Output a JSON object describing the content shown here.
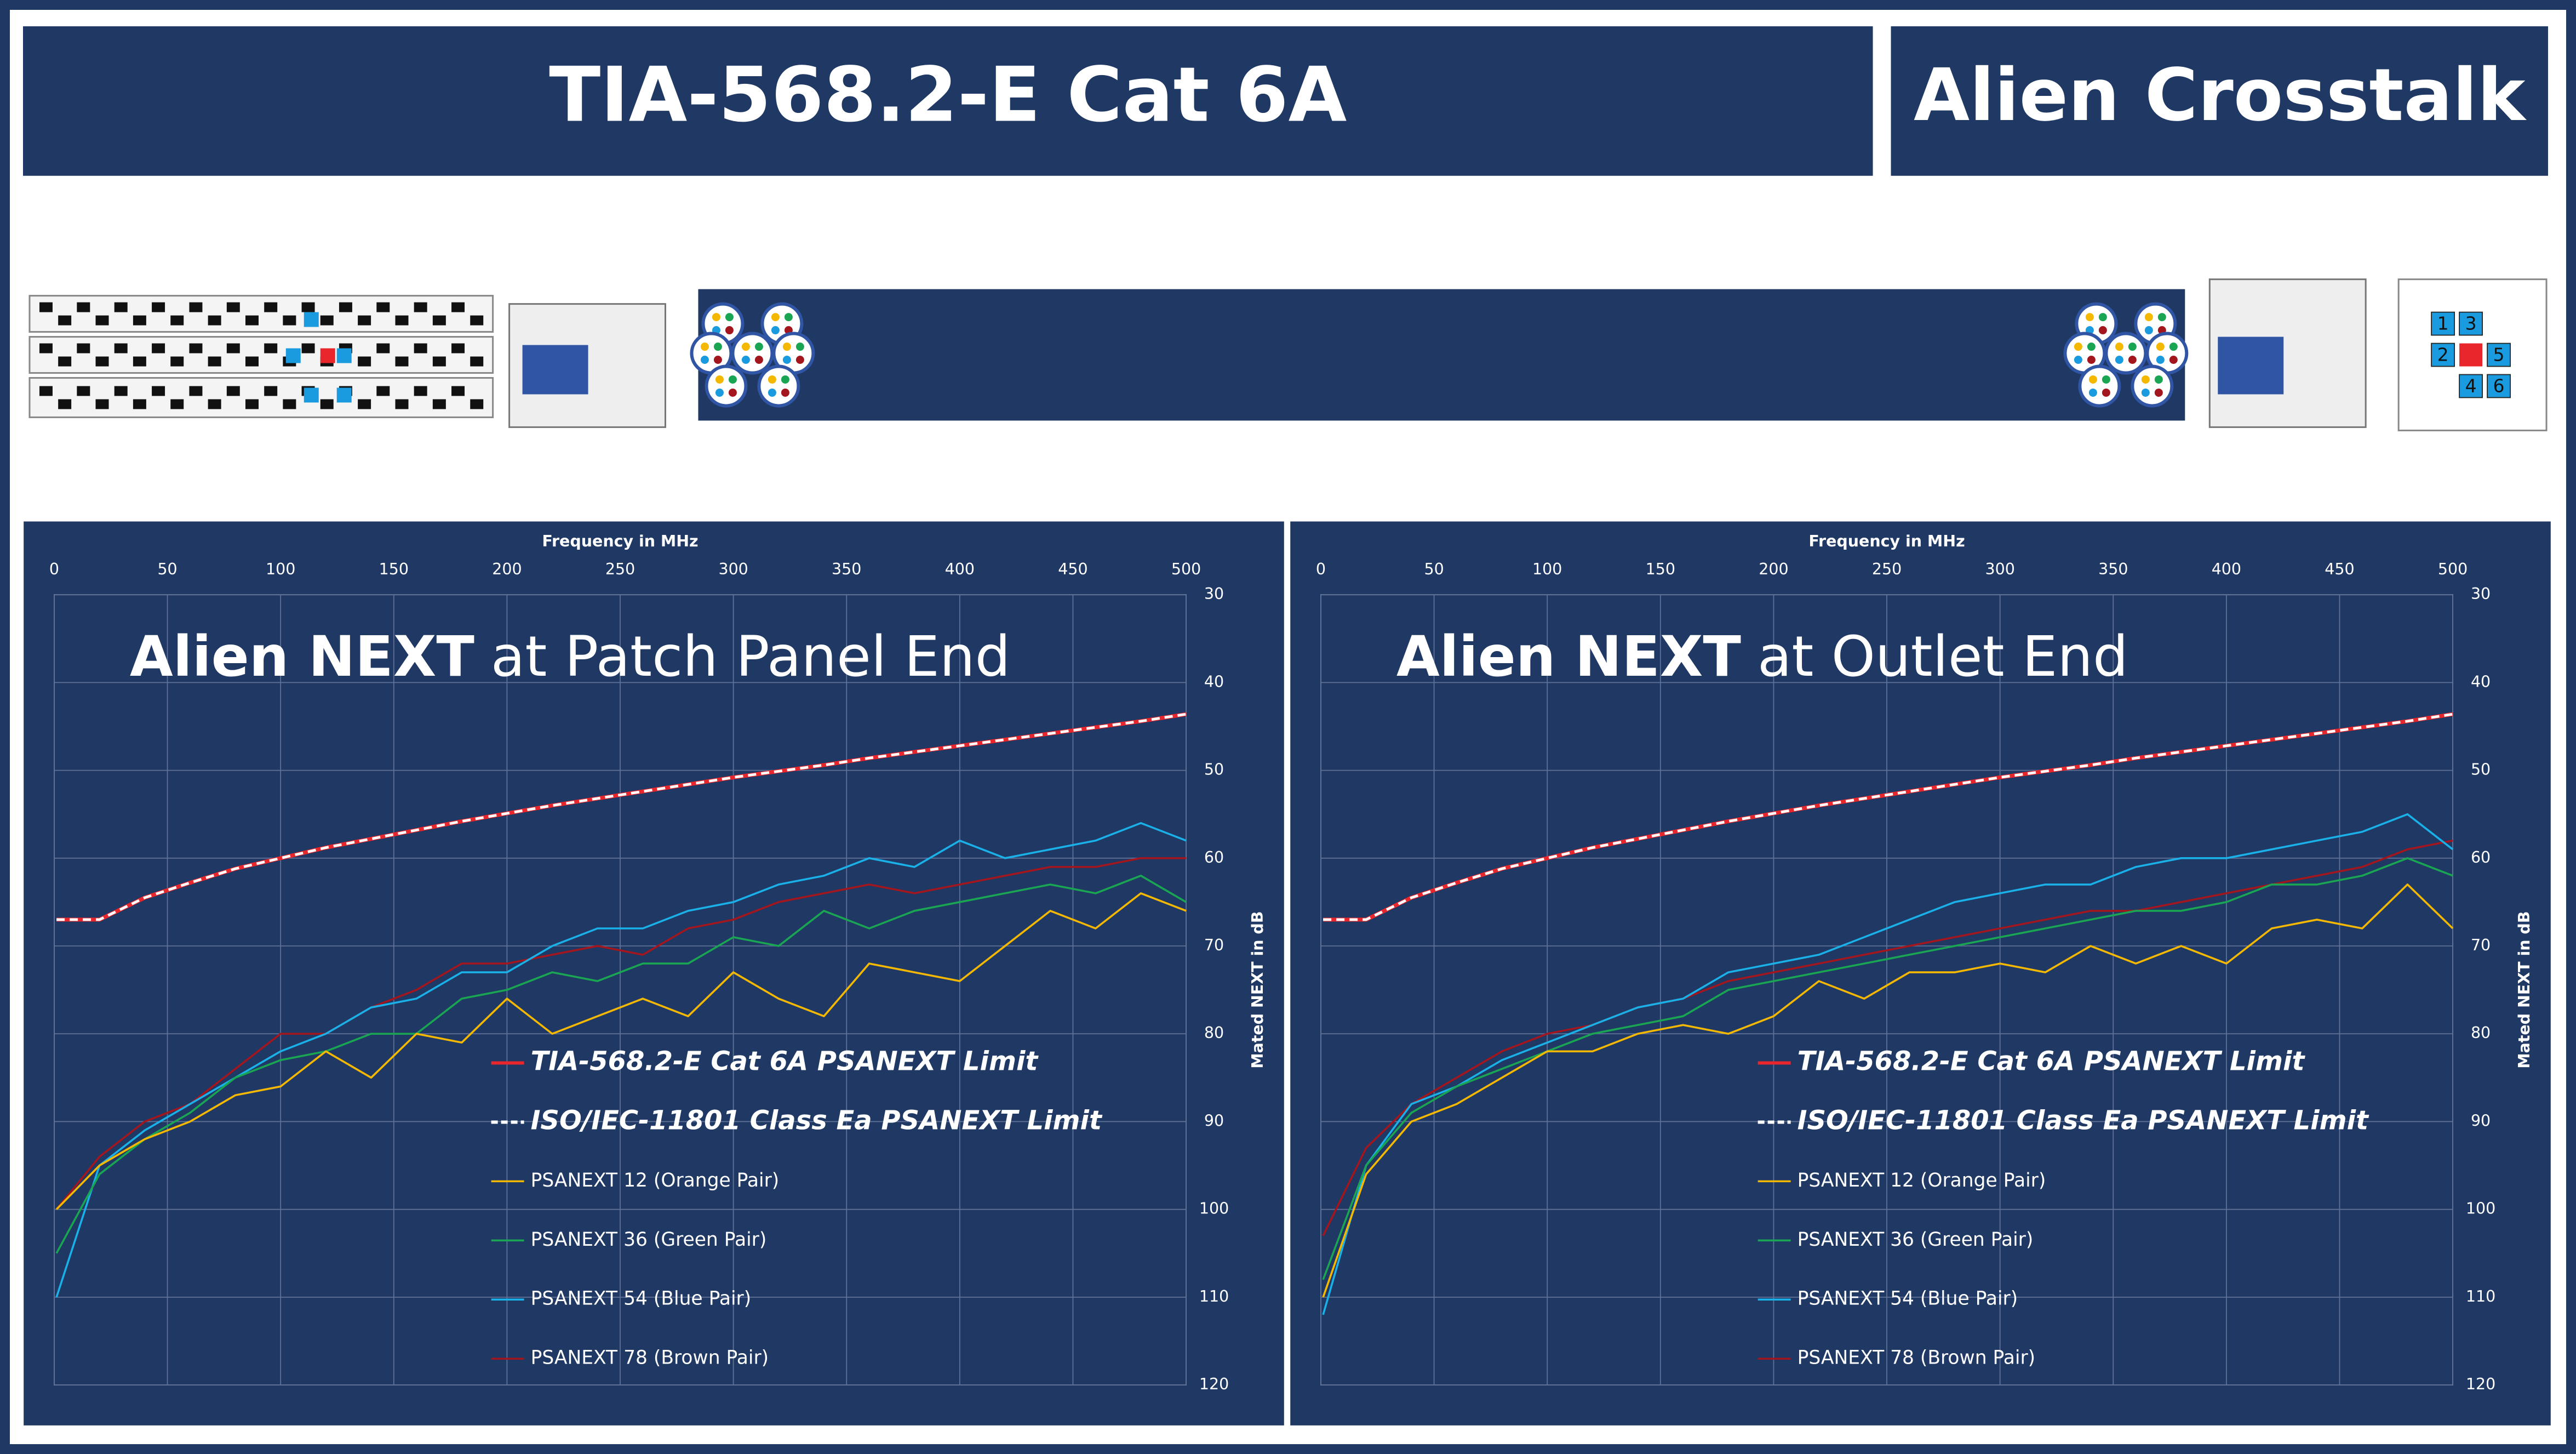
{
  "header": {
    "title": "TIA-568.2-E Cat 6A",
    "badge": "Alien Crosstalk"
  },
  "faceplate": {
    "ports": [
      "1",
      "3",
      "2",
      "5",
      "4",
      "6"
    ]
  },
  "chart_data": [
    {
      "type": "line",
      "title_emphasis": "Alien NEXT",
      "title": "at Patch Panel End",
      "x_label": "Frequency in MHz",
      "y_label": "Mated NEXT in dB",
      "x_axis_position": "top",
      "y_axis_position": "right",
      "y_reversed": true,
      "grid": true,
      "xlim": [
        0,
        500
      ],
      "xticks": [
        0,
        50,
        100,
        150,
        200,
        250,
        300,
        350,
        400,
        450,
        500
      ],
      "ylim": [
        30,
        120
      ],
      "yticks": [
        30,
        40,
        50,
        60,
        70,
        80,
        90,
        100,
        110,
        120
      ],
      "x": [
        1,
        20,
        40,
        60,
        80,
        100,
        120,
        140,
        160,
        180,
        200,
        220,
        240,
        260,
        280,
        300,
        320,
        340,
        360,
        380,
        400,
        420,
        440,
        460,
        480,
        500
      ],
      "series": [
        {
          "name": "TIA-568.2-E Cat 6A PSANEXT Limit",
          "color": "#e8262b",
          "dashed": false,
          "legend_emphasis": true,
          "values": [
            67,
            67,
            64.5,
            62.8,
            61.2,
            60,
            58.8,
            57.8,
            56.8,
            55.8,
            54.9,
            54,
            53.2,
            52.4,
            51.6,
            50.8,
            50.1,
            49.4,
            48.6,
            47.9,
            47.2,
            46.5,
            45.8,
            45.1,
            44.4,
            43.6
          ]
        },
        {
          "name": "ISO/IEC-11801 Class Ea PSANEXT Limit",
          "color": "#ffffff",
          "dashed": true,
          "legend_emphasis": true,
          "values": [
            67,
            67,
            64.5,
            62.8,
            61.2,
            60,
            58.8,
            57.8,
            56.8,
            55.8,
            54.9,
            54,
            53.2,
            52.4,
            51.6,
            50.8,
            50.1,
            49.4,
            48.6,
            47.9,
            47.2,
            46.5,
            45.8,
            45.1,
            44.4,
            43.6
          ]
        },
        {
          "name": "PSANEXT 12 (Orange Pair)",
          "color": "#f5b800",
          "dashed": false,
          "legend_emphasis": false,
          "values": [
            100,
            95,
            92,
            90,
            87,
            86,
            82,
            85,
            80,
            81,
            76,
            80,
            78,
            76,
            78,
            73,
            76,
            78,
            72,
            73,
            74,
            70,
            66,
            68,
            64,
            66
          ]
        },
        {
          "name": "PSANEXT 36 (Green Pair)",
          "color": "#19a552",
          "dashed": false,
          "legend_emphasis": false,
          "values": [
            105,
            96,
            92,
            89,
            85,
            83,
            82,
            80,
            80,
            76,
            75,
            73,
            74,
            72,
            72,
            69,
            70,
            66,
            68,
            66,
            65,
            64,
            63,
            64,
            62,
            65
          ]
        },
        {
          "name": "PSANEXT 54 (Blue Pair)",
          "color": "#1ab0e8",
          "dashed": false,
          "legend_emphasis": false,
          "values": [
            110,
            95,
            91,
            88,
            85,
            82,
            80,
            77,
            76,
            73,
            73,
            70,
            68,
            68,
            66,
            65,
            63,
            62,
            60,
            61,
            58,
            60,
            59,
            58,
            56,
            58
          ]
        },
        {
          "name": "PSANEXT 78 (Brown Pair)",
          "color": "#a3161d",
          "dashed": false,
          "legend_emphasis": false,
          "values": [
            100,
            94,
            90,
            88,
            84,
            80,
            80,
            77,
            75,
            72,
            72,
            71,
            70,
            71,
            68,
            67,
            65,
            64,
            63,
            64,
            63,
            62,
            61,
            61,
            60,
            60
          ]
        }
      ]
    },
    {
      "type": "line",
      "title_emphasis": "Alien NEXT",
      "title": "at Outlet End",
      "x_label": "Frequency in MHz",
      "y_label": "Mated NEXT in dB",
      "x_axis_position": "top",
      "y_axis_position": "right",
      "y_reversed": true,
      "grid": true,
      "xlim": [
        0,
        500
      ],
      "xticks": [
        0,
        50,
        100,
        150,
        200,
        250,
        300,
        350,
        400,
        450,
        500
      ],
      "ylim": [
        30,
        120
      ],
      "yticks": [
        30,
        40,
        50,
        60,
        70,
        80,
        90,
        100,
        110,
        120
      ],
      "x": [
        1,
        20,
        40,
        60,
        80,
        100,
        120,
        140,
        160,
        180,
        200,
        220,
        240,
        260,
        280,
        300,
        320,
        340,
        360,
        380,
        400,
        420,
        440,
        460,
        480,
        500
      ],
      "series": [
        {
          "name": "TIA-568.2-E Cat 6A PSANEXT Limit",
          "color": "#e8262b",
          "dashed": false,
          "legend_emphasis": true,
          "values": [
            67,
            67,
            64.5,
            62.8,
            61.2,
            60,
            58.8,
            57.8,
            56.8,
            55.8,
            54.9,
            54,
            53.2,
            52.4,
            51.6,
            50.8,
            50.1,
            49.4,
            48.6,
            47.9,
            47.2,
            46.5,
            45.8,
            45.1,
            44.4,
            43.6
          ]
        },
        {
          "name": "ISO/IEC-11801 Class Ea PSANEXT Limit",
          "color": "#ffffff",
          "dashed": true,
          "legend_emphasis": true,
          "values": [
            67,
            67,
            64.5,
            62.8,
            61.2,
            60,
            58.8,
            57.8,
            56.8,
            55.8,
            54.9,
            54,
            53.2,
            52.4,
            51.6,
            50.8,
            50.1,
            49.4,
            48.6,
            47.9,
            47.2,
            46.5,
            45.8,
            45.1,
            44.4,
            43.6
          ]
        },
        {
          "name": "PSANEXT 12 (Orange Pair)",
          "color": "#f5b800",
          "dashed": false,
          "legend_emphasis": false,
          "values": [
            110,
            96,
            90,
            88,
            85,
            82,
            82,
            80,
            79,
            80,
            78,
            74,
            76,
            73,
            73,
            72,
            73,
            70,
            72,
            70,
            72,
            68,
            67,
            68,
            63,
            68
          ]
        },
        {
          "name": "PSANEXT 36 (Green Pair)",
          "color": "#19a552",
          "dashed": false,
          "legend_emphasis": false,
          "values": [
            108,
            95,
            89,
            86,
            84,
            82,
            80,
            79,
            78,
            75,
            74,
            73,
            72,
            71,
            70,
            69,
            68,
            67,
            66,
            66,
            65,
            63,
            63,
            62,
            60,
            62
          ]
        },
        {
          "name": "PSANEXT 54 (Blue Pair)",
          "color": "#1ab0e8",
          "dashed": false,
          "legend_emphasis": false,
          "values": [
            112,
            95,
            88,
            86,
            83,
            81,
            79,
            77,
            76,
            73,
            72,
            71,
            69,
            67,
            65,
            64,
            63,
            63,
            61,
            60,
            60,
            59,
            58,
            57,
            55,
            59
          ]
        },
        {
          "name": "PSANEXT 78 (Brown Pair)",
          "color": "#a3161d",
          "dashed": false,
          "legend_emphasis": false,
          "values": [
            103,
            93,
            88,
            85,
            82,
            80,
            79,
            77,
            76,
            74,
            73,
            72,
            71,
            70,
            69,
            68,
            67,
            66,
            66,
            65,
            64,
            63,
            62,
            61,
            59,
            58
          ]
        }
      ]
    }
  ]
}
